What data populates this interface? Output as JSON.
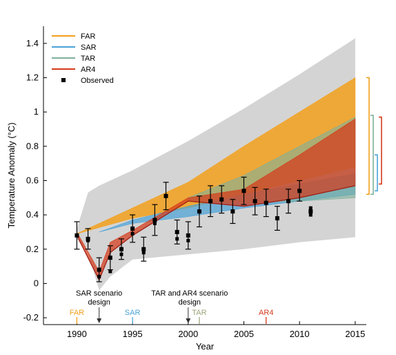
{
  "chart_data": {
    "type": "area",
    "xlabel": "Year",
    "ylabel": "Temperature Anomaly (°C)",
    "xlim": [
      1987,
      2016
    ],
    "ylim": [
      -0.24,
      1.5
    ],
    "xticks": [
      1990,
      1995,
      2000,
      2005,
      2010,
      2015
    ],
    "yticks": [
      -0.2,
      0,
      0.2,
      0.4,
      0.6,
      0.8,
      1,
      1.2,
      1.4
    ],
    "ytick_labels": [
      "-0.2",
      "0",
      "0.2",
      "0.4",
      "0.6",
      "0.8",
      "1",
      "1.2",
      "1.4"
    ],
    "grid": false,
    "legend_position": "top-left",
    "envelope": {
      "color": "#d4d4d4",
      "x": [
        1990,
        1991,
        1992,
        1993,
        1995,
        2000,
        2005,
        2010,
        2015
      ],
      "lower": [
        0.26,
        0.18,
        -0.04,
        0.04,
        0.14,
        0.17,
        0.2,
        0.24,
        0.27
      ],
      "upper": [
        0.32,
        0.53,
        0.57,
        0.6,
        0.66,
        0.83,
        1.02,
        1.22,
        1.43
      ]
    },
    "series": [
      {
        "name": "FAR",
        "color": "#f2a01c",
        "x": [
          1990,
          1995,
          2000,
          2005,
          2010,
          2015
        ],
        "lower": [
          0.29,
          0.38,
          0.44,
          0.52,
          0.6,
          0.68
        ],
        "upper": [
          0.29,
          0.44,
          0.59,
          0.8,
          1.0,
          1.2
        ]
      },
      {
        "name": "SAR",
        "color": "#4aa3d8",
        "x": [
          1992,
          1995,
          2000,
          2005,
          2010,
          2015
        ],
        "lower": [
          0.3,
          0.35,
          0.39,
          0.44,
          0.48,
          0.52
        ],
        "upper": [
          0.3,
          0.37,
          0.45,
          0.52,
          0.58,
          0.64
        ]
      },
      {
        "name": "TAR",
        "color": "#7fb09b",
        "x": [
          2000,
          2005,
          2010,
          2015
        ],
        "lower": [
          0.48,
          0.47,
          0.48,
          0.5
        ],
        "upper": [
          0.5,
          0.63,
          0.8,
          0.97
        ]
      },
      {
        "name": "AR4",
        "color": "#d43a1a",
        "x": [
          1990,
          1992,
          1993,
          1995,
          2000,
          2005,
          2010,
          2015
        ],
        "lower": [
          0.28,
          0.02,
          0.18,
          0.28,
          0.48,
          0.45,
          0.5,
          0.57
        ],
        "upper": [
          0.3,
          0.07,
          0.24,
          0.31,
          0.5,
          0.55,
          0.75,
          0.96
        ]
      }
    ],
    "observed": {
      "name": "Observed",
      "x": [
        1990,
        1991,
        1992,
        1993,
        1994,
        1995,
        1996,
        1997,
        1998,
        1999,
        2000,
        2001,
        2002,
        2003,
        2004,
        2005,
        2006,
        2007,
        2008,
        2009,
        2010,
        2011
      ],
      "y": [
        0.28,
        0.26,
        0.08,
        0.15,
        0.2,
        0.32,
        0.2,
        0.37,
        0.51,
        0.3,
        0.28,
        0.42,
        0.48,
        0.49,
        0.42,
        0.54,
        0.48,
        0.47,
        0.38,
        0.48,
        0.54,
        0.42
      ],
      "yerr": [
        0.08,
        0.06,
        0.07,
        0.07,
        0.06,
        0.08,
        0.07,
        0.09,
        0.08,
        0.07,
        0.08,
        0.09,
        0.09,
        0.08,
        0.07,
        0.08,
        0.08,
        0.08,
        0.07,
        0.07,
        0.06,
        0.0
      ],
      "pairs": [
        {
          "x": 1990,
          "y": 0.28
        },
        {
          "x": 1991,
          "y": 0.25
        },
        {
          "x": 1992,
          "y": 0.04
        },
        {
          "x": 1993,
          "y": 0.07
        },
        {
          "x": 1994,
          "y": 0.17
        },
        {
          "x": 1995,
          "y": 0.29
        },
        {
          "x": 1996,
          "y": 0.18
        },
        {
          "x": 1997,
          "y": 0.35
        },
        {
          "x": 1999,
          "y": 0.26
        },
        {
          "x": 2000,
          "y": 0.25
        },
        {
          "x": 2011,
          "y": 0.44
        },
        {
          "x": 2011,
          "y": 0.4
        }
      ]
    },
    "markers": [
      {
        "label": "FAR",
        "year": 1990,
        "color": "#f2a01c"
      },
      {
        "label": "SAR",
        "year": 1995,
        "color": "#4aa3d8"
      },
      {
        "label": "TAR",
        "year": 2001,
        "color": "#9aa67a"
      },
      {
        "label": "AR4",
        "year": 2007,
        "color": "#d43a1a"
      }
    ],
    "annotations": [
      {
        "lines": [
          "SAR scenario",
          "design"
        ],
        "year": 1992
      },
      {
        "lines": [
          "TAR and AR4 scenario",
          "design"
        ],
        "year": 2000
      }
    ],
    "brackets": [
      {
        "name": "FAR",
        "color": "#f2a01c",
        "y0": 0.52,
        "y1": 1.2
      },
      {
        "name": "TAR",
        "color": "#7fb09b",
        "y0": 0.52,
        "y1": 0.98
      },
      {
        "name": "SAR",
        "color": "#4aa3d8",
        "y0": 0.54,
        "y1": 0.75
      },
      {
        "name": "AR4",
        "color": "#d43a1a",
        "y0": 0.58,
        "y1": 0.97
      }
    ]
  }
}
